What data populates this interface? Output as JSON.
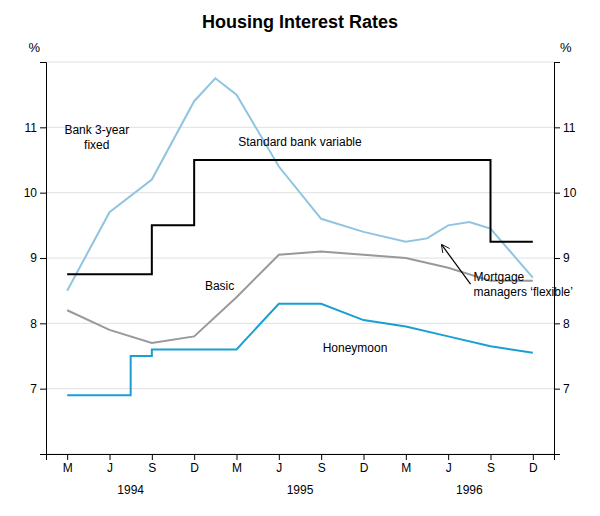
{
  "chart_data": {
    "type": "line",
    "title": "Housing Interest Rates",
    "ylabel": "%",
    "y2label": "%",
    "xlim": [
      -0.5,
      11.5
    ],
    "xticks": [
      {
        "value": 0,
        "label": "M"
      },
      {
        "value": 1,
        "label": "J"
      },
      {
        "value": 2,
        "label": "S"
      },
      {
        "value": 3,
        "label": "D"
      },
      {
        "value": 4,
        "label": "M"
      },
      {
        "value": 5,
        "label": "J"
      },
      {
        "value": 6,
        "label": "S"
      },
      {
        "value": 7,
        "label": "D"
      },
      {
        "value": 8,
        "label": "M"
      },
      {
        "value": 9,
        "label": "J"
      },
      {
        "value": 10,
        "label": "S"
      },
      {
        "value": 11,
        "label": "D"
      }
    ],
    "x_group_labels": [
      {
        "value": 1.5,
        "label": "1994"
      },
      {
        "value": 5.5,
        "label": "1995"
      },
      {
        "value": 9.5,
        "label": "1996"
      }
    ],
    "ylim": [
      6,
      12
    ],
    "yticks": [
      {
        "value": 6,
        "label": null
      },
      7,
      8,
      9,
      10,
      11,
      {
        "value": 12,
        "label": null
      }
    ],
    "y2lim": [
      6,
      12
    ],
    "y2ticks": [
      {
        "value": 6,
        "label": null
      },
      7,
      8,
      9,
      10,
      11,
      {
        "value": 12,
        "label": null
      }
    ],
    "grid": true,
    "series": [
      {
        "name": "Bank 3-year\nfixed",
        "color": "#90c4e0",
        "x": [
          0,
          1,
          2,
          3,
          3.5,
          4,
          5,
          6,
          7,
          8,
          8.5,
          9,
          9.5,
          10,
          11
        ],
        "values": [
          8.5,
          9.7,
          10.2,
          11.4,
          11.75,
          11.5,
          10.4,
          9.6,
          9.4,
          9.25,
          9.3,
          9.5,
          9.55,
          9.45,
          8.7
        ],
        "label_x": 0.7,
        "label_y": 10.85
      },
      {
        "name": "Standard bank variable",
        "color": "#000000",
        "x": [
          0,
          2,
          2,
          3,
          3,
          4,
          10,
          10,
          11
        ],
        "values": [
          8.75,
          8.75,
          9.5,
          9.5,
          10.5,
          10.5,
          10.5,
          9.25,
          9.25
        ],
        "label_x": 5.5,
        "label_y": 10.78
      },
      {
        "name": "Basic",
        "color": "#999999",
        "x": [
          0,
          1,
          2,
          3,
          4,
          5,
          6,
          7,
          8,
          9,
          10,
          11
        ],
        "values": [
          8.2,
          7.9,
          7.7,
          7.8,
          8.4,
          9.05,
          9.1,
          9.05,
          9.0,
          8.85,
          8.65,
          8.65
        ],
        "label_x": 3.6,
        "label_y": 8.58
      },
      {
        "name": "Honeymoon",
        "color": "#1a9fd4",
        "x": [
          0,
          1.5,
          1.5,
          2,
          2,
          3,
          4,
          5,
          6,
          7,
          8,
          9,
          10,
          11
        ],
        "values": [
          6.9,
          6.9,
          7.5,
          7.5,
          7.6,
          7.6,
          7.6,
          8.3,
          8.3,
          8.05,
          7.95,
          7.8,
          7.65,
          7.55
        ],
        "label_x": 6.8,
        "label_y": 7.62
      }
    ],
    "annotations": [
      {
        "text": "Mortgage\nmanagers ‘flexible’",
        "x": 9.6,
        "y": 8.6,
        "arrow_x": 8.85,
        "arrow_y": 9.2
      }
    ]
  }
}
